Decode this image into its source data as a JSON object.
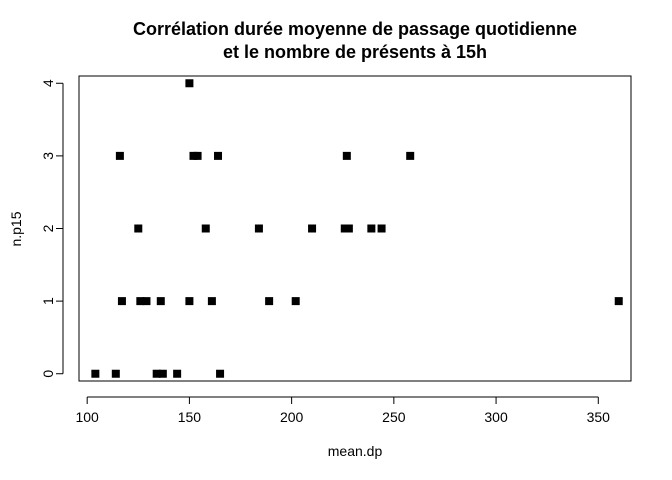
{
  "chart_data": {
    "type": "scatter",
    "title_lines": [
      "Corrélation durée moyenne de passage quotidienne",
      "et le nombre de présents à 15h"
    ],
    "xlabel": "mean.dp",
    "ylabel": "n.p15",
    "xlim": [
      96,
      366
    ],
    "ylim": [
      -0.1,
      4.1
    ],
    "xticks": [
      "100",
      "150",
      "200",
      "250",
      "300",
      "350"
    ],
    "yticks": [
      "0",
      "1",
      "2",
      "3",
      "4"
    ],
    "grid": false,
    "legend": "none",
    "marker": "square",
    "marker_color": "#000000",
    "points": [
      {
        "x": 104,
        "y": 0
      },
      {
        "x": 114,
        "y": 0
      },
      {
        "x": 134,
        "y": 0
      },
      {
        "x": 137,
        "y": 0
      },
      {
        "x": 144,
        "y": 0
      },
      {
        "x": 165,
        "y": 0
      },
      {
        "x": 117,
        "y": 1
      },
      {
        "x": 126,
        "y": 1
      },
      {
        "x": 129,
        "y": 1
      },
      {
        "x": 136,
        "y": 1
      },
      {
        "x": 150,
        "y": 1
      },
      {
        "x": 161,
        "y": 1
      },
      {
        "x": 189,
        "y": 1
      },
      {
        "x": 202,
        "y": 1
      },
      {
        "x": 360,
        "y": 1
      },
      {
        "x": 125,
        "y": 2
      },
      {
        "x": 158,
        "y": 2
      },
      {
        "x": 184,
        "y": 2
      },
      {
        "x": 210,
        "y": 2
      },
      {
        "x": 226,
        "y": 2
      },
      {
        "x": 228,
        "y": 2
      },
      {
        "x": 239,
        "y": 2
      },
      {
        "x": 244,
        "y": 2
      },
      {
        "x": 116,
        "y": 3
      },
      {
        "x": 152,
        "y": 3
      },
      {
        "x": 154,
        "y": 3
      },
      {
        "x": 164,
        "y": 3
      },
      {
        "x": 227,
        "y": 3
      },
      {
        "x": 258,
        "y": 3
      },
      {
        "x": 150,
        "y": 4
      }
    ]
  }
}
